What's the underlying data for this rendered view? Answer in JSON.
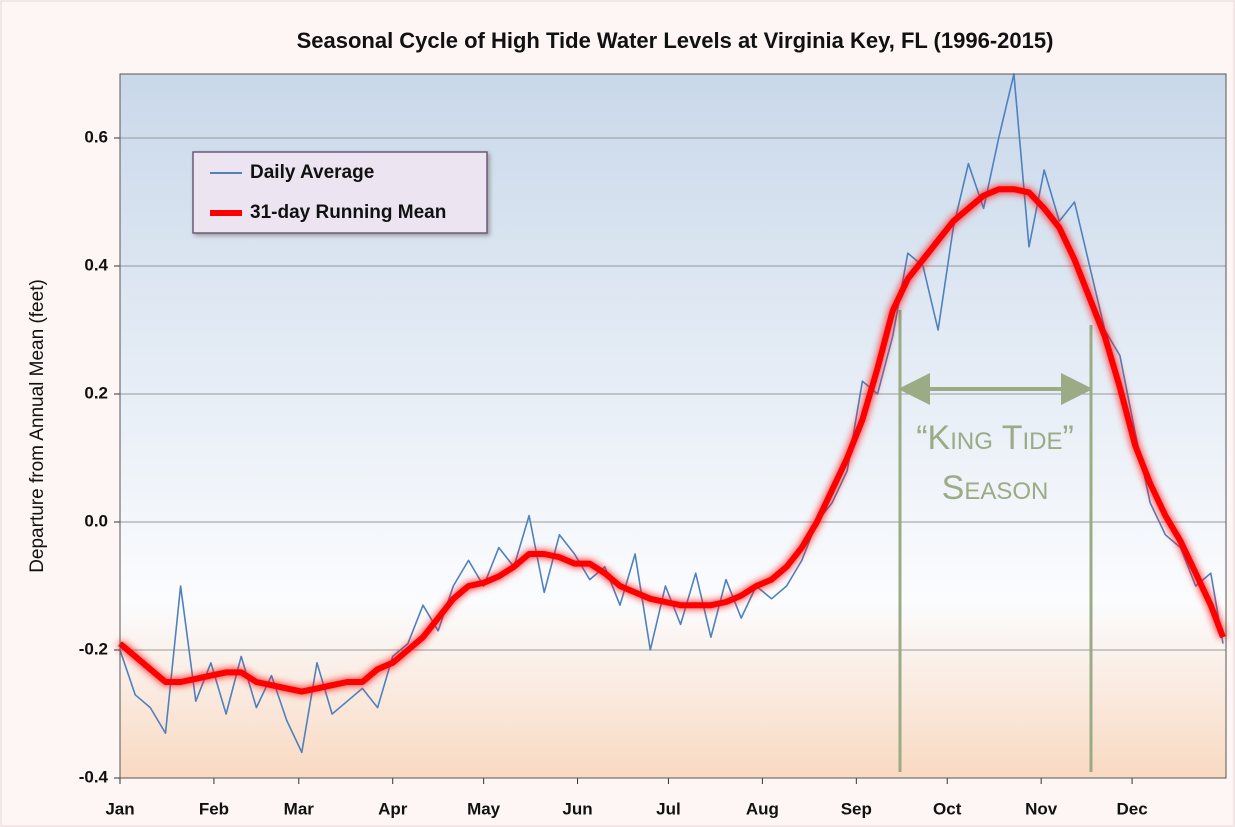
{
  "chart_data": {
    "type": "line",
    "title": "Seasonal Cycle of High Tide Water Levels at Virginia Key, FL (1996-2015)",
    "y_label": "Departure from Annual Mean (feet)",
    "x": [
      1,
      6,
      11,
      16,
      21,
      26,
      31,
      36,
      41,
      46,
      51,
      56,
      61,
      66,
      71,
      76,
      81,
      86,
      91,
      96,
      101,
      106,
      111,
      116,
      121,
      126,
      131,
      136,
      141,
      146,
      151,
      156,
      161,
      166,
      171,
      176,
      181,
      186,
      191,
      196,
      201,
      206,
      211,
      216,
      221,
      226,
      231,
      236,
      241,
      246,
      251,
      256,
      261,
      266,
      271,
      276,
      281,
      286,
      291,
      296,
      301,
      306,
      311,
      316,
      321,
      326,
      331,
      336,
      341,
      346,
      351,
      356,
      361,
      365
    ],
    "series": [
      {
        "name": "Daily Average",
        "color": "#4f81bd",
        "values": [
          -0.2,
          -0.27,
          -0.29,
          -0.33,
          -0.1,
          -0.28,
          -0.22,
          -0.3,
          -0.21,
          -0.29,
          -0.24,
          -0.31,
          -0.36,
          -0.22,
          -0.3,
          -0.28,
          -0.26,
          -0.29,
          -0.21,
          -0.19,
          -0.13,
          -0.17,
          -0.1,
          -0.06,
          -0.1,
          -0.04,
          -0.07,
          0.01,
          -0.11,
          -0.02,
          -0.05,
          -0.09,
          -0.07,
          -0.13,
          -0.05,
          -0.2,
          -0.1,
          -0.16,
          -0.08,
          -0.18,
          -0.09,
          -0.15,
          -0.1,
          -0.12,
          -0.1,
          -0.06,
          0.0,
          0.03,
          0.08,
          0.22,
          0.2,
          0.29,
          0.42,
          0.4,
          0.3,
          0.46,
          0.56,
          0.49,
          0.6,
          0.7,
          0.43,
          0.55,
          0.47,
          0.5,
          0.4,
          0.3,
          0.26,
          0.14,
          0.03,
          -0.02,
          -0.04,
          -0.1,
          -0.08,
          -0.19
        ]
      },
      {
        "name": "31-day Running Mean",
        "color": "#ff0000",
        "values": [
          -0.19,
          -0.21,
          -0.23,
          -0.25,
          -0.25,
          -0.245,
          -0.24,
          -0.235,
          -0.235,
          -0.25,
          -0.255,
          -0.26,
          -0.265,
          -0.26,
          -0.255,
          -0.25,
          -0.25,
          -0.23,
          -0.22,
          -0.2,
          -0.18,
          -0.15,
          -0.12,
          -0.1,
          -0.095,
          -0.085,
          -0.07,
          -0.05,
          -0.05,
          -0.055,
          -0.065,
          -0.065,
          -0.08,
          -0.1,
          -0.11,
          -0.12,
          -0.125,
          -0.13,
          -0.13,
          -0.13,
          -0.125,
          -0.115,
          -0.1,
          -0.09,
          -0.07,
          -0.04,
          0.0,
          0.05,
          0.1,
          0.16,
          0.24,
          0.33,
          0.38,
          0.41,
          0.44,
          0.47,
          0.49,
          0.51,
          0.52,
          0.52,
          0.515,
          0.49,
          0.46,
          0.41,
          0.35,
          0.29,
          0.21,
          0.12,
          0.06,
          0.01,
          -0.03,
          -0.08,
          -0.13,
          -0.18
        ]
      }
    ],
    "xlim": [
      1,
      366
    ],
    "xticks": [
      {
        "value": 1,
        "label": "Jan"
      },
      {
        "value": 32,
        "label": "Feb"
      },
      {
        "value": 60,
        "label": "Mar"
      },
      {
        "value": 91,
        "label": "Apr"
      },
      {
        "value": 121,
        "label": "May"
      },
      {
        "value": 152,
        "label": "Jun"
      },
      {
        "value": 182,
        "label": "Jul"
      },
      {
        "value": 213,
        "label": "Aug"
      },
      {
        "value": 244,
        "label": "Sep"
      },
      {
        "value": 274,
        "label": "Oct"
      },
      {
        "value": 305,
        "label": "Nov"
      },
      {
        "value": 335,
        "label": "Dec"
      }
    ],
    "ylim": [
      -0.4,
      0.7
    ],
    "yticks": [
      -0.4,
      -0.2,
      {
        "value": 0,
        "label": "0.0"
      },
      0.2,
      0.4,
      0.6
    ],
    "grid": true,
    "legend": "upper left",
    "annotation": [
      "“King Tide”",
      "Season"
    ]
  }
}
